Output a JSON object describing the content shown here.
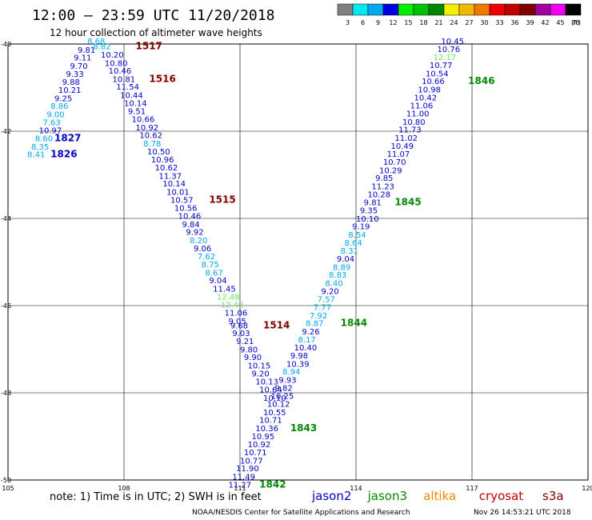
{
  "header": {
    "title": "12:00 – 23:59 UTC 11/20/2018",
    "subtitle": "12 hour collection of altimeter wave heights"
  },
  "colorbar": {
    "unit": "(ft)",
    "bins": [
      {
        "label": "3",
        "color": "#808080"
      },
      {
        "label": "6",
        "color": "#00e8f0"
      },
      {
        "label": "9",
        "color": "#00a8f0"
      },
      {
        "label": "12",
        "color": "#0000e0"
      },
      {
        "label": "15",
        "color": "#00f000"
      },
      {
        "label": "18",
        "color": "#00c000"
      },
      {
        "label": "21",
        "color": "#008800"
      },
      {
        "label": "24",
        "color": "#f0f000"
      },
      {
        "label": "27",
        "color": "#f0b800"
      },
      {
        "label": "30",
        "color": "#f07800"
      },
      {
        "label": "33",
        "color": "#f00000"
      },
      {
        "label": "36",
        "color": "#c00000"
      },
      {
        "label": "39",
        "color": "#800000"
      },
      {
        "label": "42",
        "color": "#a000a0"
      },
      {
        "label": "45",
        "color": "#f000f0"
      },
      {
        "label": "70",
        "color": "#000000"
      }
    ]
  },
  "map": {
    "lon_range": [
      105,
      120
    ],
    "lat_range": [
      -50,
      -40
    ],
    "lon_ticks": [
      {
        "value": 105,
        "label": "105"
      },
      {
        "value": 108,
        "label": "108"
      },
      {
        "value": 111,
        "label": "111"
      },
      {
        "value": 114,
        "label": "114"
      },
      {
        "value": 117,
        "label": "117"
      },
      {
        "value": 120,
        "label": "120"
      }
    ],
    "lat_ticks": [
      {
        "value": -40,
        "label": "-40"
      },
      {
        "value": -42,
        "label": "-42"
      },
      {
        "value": -44,
        "label": "-44"
      },
      {
        "value": -46,
        "label": "-46"
      },
      {
        "value": -48,
        "label": "-48"
      },
      {
        "value": -50,
        "label": "-50"
      }
    ]
  },
  "colors": {
    "jason2": "#0000c8",
    "jason2_light": "#00a8f0",
    "jason3": "#008800",
    "jason3_light": "#66e866",
    "altika": "#f08800",
    "cryosat": "#c00000",
    "s3a": "#800000"
  },
  "tracks": [
    {
      "id": "track-1515-1517",
      "points": [
        {
          "lon": 107.2,
          "lat": -40.12,
          "v": "8.82",
          "c": "light"
        },
        {
          "lon": 107.4,
          "lat": -40.31,
          "v": "10.20",
          "c": "dark"
        },
        {
          "lon": 107.5,
          "lat": -40.5,
          "v": "10.80",
          "c": "dark"
        },
        {
          "lon": 107.6,
          "lat": -40.68,
          "v": "10.46",
          "c": "dark"
        },
        {
          "lon": 107.7,
          "lat": -40.87,
          "v": "10.81",
          "c": "dark"
        },
        {
          "lon": 107.8,
          "lat": -41.05,
          "v": "11.54",
          "c": "dark"
        },
        {
          "lon": 107.9,
          "lat": -41.24,
          "v": "10.44",
          "c": "dark"
        },
        {
          "lon": 108.0,
          "lat": -41.42,
          "v": "10.14",
          "c": "dark"
        },
        {
          "lon": 108.1,
          "lat": -41.61,
          "v": "9.51",
          "c": "dark"
        },
        {
          "lon": 108.2,
          "lat": -41.79,
          "v": "10.66",
          "c": "dark"
        },
        {
          "lon": 108.3,
          "lat": -41.98,
          "v": "10.92",
          "c": "dark"
        },
        {
          "lon": 108.4,
          "lat": -42.16,
          "v": "10.62",
          "c": "dark"
        },
        {
          "lon": 108.5,
          "lat": -42.35,
          "v": "8.78",
          "c": "light"
        },
        {
          "lon": 108.6,
          "lat": -42.53,
          "v": "10.50",
          "c": "dark"
        },
        {
          "lon": 108.7,
          "lat": -42.72,
          "v": "10.96",
          "c": "dark"
        },
        {
          "lon": 108.8,
          "lat": -42.9,
          "v": "10.62",
          "c": "dark"
        },
        {
          "lon": 108.9,
          "lat": -43.09,
          "v": "11.37",
          "c": "dark"
        },
        {
          "lon": 109.0,
          "lat": -43.27,
          "v": "10.14",
          "c": "dark"
        },
        {
          "lon": 109.1,
          "lat": -43.46,
          "v": "10.01",
          "c": "dark"
        },
        {
          "lon": 109.2,
          "lat": -43.64,
          "v": "10.57",
          "c": "dark"
        },
        {
          "lon": 109.3,
          "lat": -43.83,
          "v": "10.56",
          "c": "dark"
        },
        {
          "lon": 109.4,
          "lat": -44.01,
          "v": "10.46",
          "c": "dark"
        },
        {
          "lon": 109.5,
          "lat": -44.2,
          "v": "9.84",
          "c": "dark"
        },
        {
          "lon": 109.6,
          "lat": -44.38,
          "v": "9.92",
          "c": "dark"
        },
        {
          "lon": 109.7,
          "lat": -44.57,
          "v": "8.20",
          "c": "light"
        },
        {
          "lon": 109.8,
          "lat": -44.75,
          "v": "9.06",
          "c": "dark"
        },
        {
          "lon": 109.9,
          "lat": -44.94,
          "v": "7.62",
          "c": "light"
        },
        {
          "lon": 110.0,
          "lat": -45.12,
          "v": "8.75",
          "c": "light"
        },
        {
          "lon": 110.1,
          "lat": -45.31,
          "v": "8.67",
          "c": "light"
        },
        {
          "lon": 110.2,
          "lat": -45.49,
          "v": "9.04",
          "c": "dark"
        },
        {
          "lon": 110.3,
          "lat": -45.68,
          "v": "11.45",
          "c": "dark"
        },
        {
          "lon": 110.4,
          "lat": -45.86,
          "v": "12.48",
          "c": "j3light"
        },
        {
          "lon": 110.5,
          "lat": -46.05,
          "v": "12.42",
          "c": "j3light"
        },
        {
          "lon": 110.6,
          "lat": -46.23,
          "v": "11.06",
          "c": "dark"
        },
        {
          "lon": 110.7,
          "lat": -46.42,
          "v": "9.05",
          "c": "dark"
        },
        {
          "lon": 110.75,
          "lat": -46.52,
          "v": "9.68",
          "c": "dark"
        },
        {
          "lon": 110.8,
          "lat": -46.7,
          "v": "9.03",
          "c": "dark"
        },
        {
          "lon": 110.9,
          "lat": -46.88,
          "v": "9.21",
          "c": "dark"
        },
        {
          "lon": 111.0,
          "lat": -47.07,
          "v": "9.80",
          "c": "dark"
        },
        {
          "lon": 111.1,
          "lat": -47.25,
          "v": "9.90",
          "c": "dark"
        },
        {
          "lon": 111.2,
          "lat": -47.44,
          "v": "10.15",
          "c": "dark"
        },
        {
          "lon": 111.3,
          "lat": -47.62,
          "v": "9.20",
          "c": "dark"
        },
        {
          "lon": 111.4,
          "lat": -47.81,
          "v": "10.13",
          "c": "dark"
        },
        {
          "lon": 111.5,
          "lat": -47.99,
          "v": "10.64",
          "c": "dark"
        },
        {
          "lon": 111.6,
          "lat": -48.18,
          "v": "10.10",
          "c": "dark"
        }
      ],
      "times": [
        {
          "lon": 108.3,
          "lat": -40.12,
          "label": "1517",
          "c": "s3a"
        },
        {
          "lon": 108.65,
          "lat": -40.87,
          "label": "1516",
          "c": "s3a"
        },
        {
          "lon": 110.2,
          "lat": -43.64,
          "label": "1515",
          "c": "s3a"
        },
        {
          "lon": 111.6,
          "lat": -46.52,
          "label": "1514",
          "c": "s3a"
        }
      ]
    },
    {
      "id": "track-1826-1827",
      "points": [
        {
          "lon": 107.05,
          "lat": -40.0,
          "v": "8.68",
          "c": "light"
        },
        {
          "lon": 106.8,
          "lat": -40.2,
          "v": "9.81",
          "c": "dark"
        },
        {
          "lon": 106.7,
          "lat": -40.38,
          "v": "9.11",
          "c": "dark"
        },
        {
          "lon": 106.6,
          "lat": -40.57,
          "v": "9.70",
          "c": "dark"
        },
        {
          "lon": 106.5,
          "lat": -40.75,
          "v": "9.33",
          "c": "dark"
        },
        {
          "lon": 106.4,
          "lat": -40.94,
          "v": "9.88",
          "c": "dark"
        },
        {
          "lon": 106.3,
          "lat": -41.12,
          "v": "10.21",
          "c": "dark"
        },
        {
          "lon": 106.2,
          "lat": -41.31,
          "v": "9.25",
          "c": "dark"
        },
        {
          "lon": 106.1,
          "lat": -41.49,
          "v": "8.86",
          "c": "light"
        },
        {
          "lon": 106.0,
          "lat": -41.68,
          "v": "9.00",
          "c": "light"
        },
        {
          "lon": 105.9,
          "lat": -41.86,
          "v": "7.63",
          "c": "light"
        },
        {
          "lon": 105.8,
          "lat": -42.05,
          "v": "10.97",
          "c": "dark"
        },
        {
          "lon": 105.7,
          "lat": -42.23,
          "v": "8.60",
          "c": "light"
        },
        {
          "lon": 105.6,
          "lat": -42.42,
          "v": "8.35",
          "c": "light"
        },
        {
          "lon": 105.5,
          "lat": -42.6,
          "v": "8.41",
          "c": "light"
        }
      ],
      "times": [
        {
          "lon": 106.2,
          "lat": -42.23,
          "label": "1827",
          "c": "jason2"
        },
        {
          "lon": 106.1,
          "lat": -42.6,
          "label": "1826",
          "c": "jason2"
        }
      ]
    },
    {
      "id": "track-1842-1846",
      "points": [
        {
          "lon": 116.2,
          "lat": -40.0,
          "v": "10.45",
          "c": "dark"
        },
        {
          "lon": 116.1,
          "lat": -40.18,
          "v": "10.76",
          "c": "dark"
        },
        {
          "lon": 116.0,
          "lat": -40.37,
          "v": "12.17",
          "c": "j3light"
        },
        {
          "lon": 115.9,
          "lat": -40.55,
          "v": "10.77",
          "c": "dark"
        },
        {
          "lon": 115.8,
          "lat": -40.74,
          "v": "10.54",
          "c": "dark"
        },
        {
          "lon": 115.7,
          "lat": -40.92,
          "v": "10.66",
          "c": "dark"
        },
        {
          "lon": 115.6,
          "lat": -41.11,
          "v": "10.98",
          "c": "dark"
        },
        {
          "lon": 115.5,
          "lat": -41.29,
          "v": "10.42",
          "c": "dark"
        },
        {
          "lon": 115.4,
          "lat": -41.48,
          "v": "11.06",
          "c": "dark"
        },
        {
          "lon": 115.3,
          "lat": -41.66,
          "v": "11.00",
          "c": "dark"
        },
        {
          "lon": 115.2,
          "lat": -41.85,
          "v": "10.80",
          "c": "dark"
        },
        {
          "lon": 115.1,
          "lat": -42.03,
          "v": "11.73",
          "c": "dark"
        },
        {
          "lon": 115.0,
          "lat": -42.22,
          "v": "11.02",
          "c": "dark"
        },
        {
          "lon": 114.9,
          "lat": -42.4,
          "v": "10.49",
          "c": "dark"
        },
        {
          "lon": 114.8,
          "lat": -42.59,
          "v": "11.07",
          "c": "dark"
        },
        {
          "lon": 114.7,
          "lat": -42.77,
          "v": "10.70",
          "c": "dark"
        },
        {
          "lon": 114.6,
          "lat": -42.96,
          "v": "10.29",
          "c": "dark"
        },
        {
          "lon": 114.5,
          "lat": -43.14,
          "v": "9.85",
          "c": "dark"
        },
        {
          "lon": 114.4,
          "lat": -43.33,
          "v": "11.23",
          "c": "dark"
        },
        {
          "lon": 114.3,
          "lat": -43.51,
          "v": "10.28",
          "c": "dark"
        },
        {
          "lon": 114.2,
          "lat": -43.7,
          "v": "9.81",
          "c": "dark"
        },
        {
          "lon": 114.1,
          "lat": -43.88,
          "v": "9.35",
          "c": "dark"
        },
        {
          "lon": 114.0,
          "lat": -44.07,
          "v": "10.10",
          "c": "dark"
        },
        {
          "lon": 113.9,
          "lat": -44.25,
          "v": "9.19",
          "c": "dark"
        },
        {
          "lon": 113.8,
          "lat": -44.44,
          "v": "8.54",
          "c": "light"
        },
        {
          "lon": 113.7,
          "lat": -44.62,
          "v": "8.64",
          "c": "light"
        },
        {
          "lon": 113.6,
          "lat": -44.81,
          "v": "8.31",
          "c": "light"
        },
        {
          "lon": 113.5,
          "lat": -44.99,
          "v": "9.04",
          "c": "dark"
        },
        {
          "lon": 113.4,
          "lat": -45.18,
          "v": "8.89",
          "c": "light"
        },
        {
          "lon": 113.3,
          "lat": -45.36,
          "v": "8.83",
          "c": "light"
        },
        {
          "lon": 113.2,
          "lat": -45.55,
          "v": "8.40",
          "c": "light"
        },
        {
          "lon": 113.1,
          "lat": -45.73,
          "v": "9.20",
          "c": "dark"
        },
        {
          "lon": 113.0,
          "lat": -45.92,
          "v": "7.57",
          "c": "light"
        },
        {
          "lon": 112.9,
          "lat": -46.1,
          "v": "7.77",
          "c": "light"
        },
        {
          "lon": 112.8,
          "lat": -46.29,
          "v": "7.92",
          "c": "light"
        },
        {
          "lon": 112.7,
          "lat": -46.47,
          "v": "8.87",
          "c": "light"
        },
        {
          "lon": 112.6,
          "lat": -46.66,
          "v": "9.26",
          "c": "dark"
        },
        {
          "lon": 112.5,
          "lat": -46.84,
          "v": "8.17",
          "c": "light"
        },
        {
          "lon": 112.4,
          "lat": -47.03,
          "v": "10.40",
          "c": "dark"
        },
        {
          "lon": 112.3,
          "lat": -47.21,
          "v": "9.98",
          "c": "dark"
        },
        {
          "lon": 112.2,
          "lat": -47.4,
          "v": "10.39",
          "c": "dark"
        },
        {
          "lon": 112.1,
          "lat": -47.58,
          "v": "8.94",
          "c": "light"
        },
        {
          "lon": 112.0,
          "lat": -47.77,
          "v": "9.93",
          "c": "dark"
        },
        {
          "lon": 111.9,
          "lat": -47.95,
          "v": "9.82",
          "c": "dark"
        },
        {
          "lon": 111.8,
          "lat": -48.14,
          "v": "10.25",
          "c": "dark"
        },
        {
          "lon": 111.7,
          "lat": -48.32,
          "v": "10.12",
          "c": "dark"
        },
        {
          "lon": 111.6,
          "lat": -48.51,
          "v": "10.55",
          "c": "dark"
        },
        {
          "lon": 111.5,
          "lat": -48.69,
          "v": "10.71",
          "c": "dark"
        },
        {
          "lon": 111.4,
          "lat": -48.88,
          "v": "10.36",
          "c": "dark"
        },
        {
          "lon": 111.3,
          "lat": -49.06,
          "v": "10.95",
          "c": "dark"
        },
        {
          "lon": 111.2,
          "lat": -49.25,
          "v": "10.92",
          "c": "dark"
        },
        {
          "lon": 111.1,
          "lat": -49.43,
          "v": "10.71",
          "c": "dark"
        },
        {
          "lon": 111.0,
          "lat": -49.62,
          "v": "10.77",
          "c": "dark"
        },
        {
          "lon": 110.9,
          "lat": -49.8,
          "v": "11.90",
          "c": "dark"
        },
        {
          "lon": 110.8,
          "lat": -49.99,
          "v": "11.49",
          "c": "dark"
        },
        {
          "lon": 110.7,
          "lat": -50.17,
          "v": "11.27",
          "c": "dark"
        }
      ],
      "times": [
        {
          "lon": 116.9,
          "lat": -40.92,
          "label": "1846",
          "c": "jason3"
        },
        {
          "lon": 115.0,
          "lat": -43.7,
          "label": "1845",
          "c": "jason3"
        },
        {
          "lon": 113.6,
          "lat": -46.47,
          "label": "1844",
          "c": "jason3"
        },
        {
          "lon": 112.3,
          "lat": -48.88,
          "label": "1843",
          "c": "jason3"
        },
        {
          "lon": 111.5,
          "lat": -50.17,
          "label": "1842",
          "c": "jason3"
        }
      ]
    }
  ],
  "footer": {
    "note": "note:  1) Time is in UTC;  2) SWH is in feet",
    "satellites": [
      {
        "name": "jason2",
        "color": "#0000c8"
      },
      {
        "name": "jason3",
        "color": "#008800"
      },
      {
        "name": "altika",
        "color": "#f08800"
      },
      {
        "name": "cryosat",
        "color": "#c00000"
      },
      {
        "name": "s3a",
        "color": "#800000"
      }
    ],
    "credit": "NOAA/NESDIS Center for Satellite Applications and Research",
    "timestamp": "Nov 26 14:53:21 UTC 2018"
  }
}
